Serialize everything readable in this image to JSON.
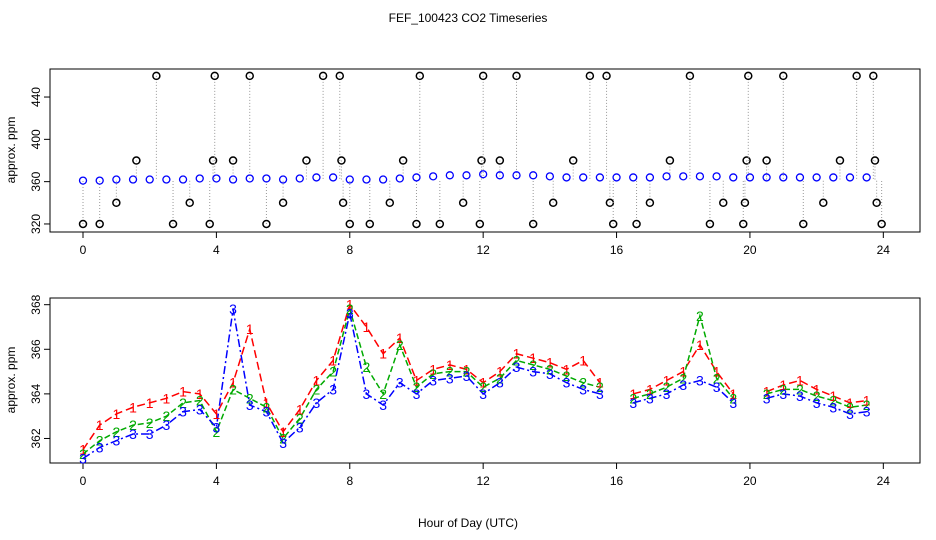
{
  "chart_data": [
    {
      "type": "scatter",
      "title": "FEF_100423  CO2 Timeseries",
      "y_label": "approx. ppm",
      "xlim": [
        -0.99,
        25.1
      ],
      "xticks": [
        0,
        4,
        8,
        12,
        16,
        20,
        24
      ],
      "ylim": [
        312.4,
        466.5
      ],
      "yticks": [
        320,
        360,
        400,
        440
      ],
      "x": [
        0,
        0.5,
        1,
        1.5,
        2,
        2.5,
        3,
        3.5,
        4,
        4.5,
        5,
        5.5,
        6,
        6.5,
        7,
        7.5,
        8,
        8.5,
        9,
        9.5,
        10,
        10.5,
        11,
        11.5,
        12,
        12.5,
        13,
        13.5,
        14,
        14.5,
        15,
        15.5,
        16,
        16.5,
        17,
        17.5,
        18,
        18.5,
        19,
        19.5,
        20,
        20.5,
        21,
        21.5,
        22,
        22.5,
        23,
        23.5
      ],
      "series": [
        {
          "color": "#0000ff",
          "values": [
            361,
            361,
            362,
            362,
            362,
            362,
            362,
            363,
            363,
            362,
            363,
            363,
            362,
            363,
            364,
            364,
            362,
            362,
            362,
            363,
            364,
            365,
            366,
            366,
            367,
            366,
            366,
            366,
            365,
            364,
            364,
            364,
            364,
            364,
            364,
            365,
            365,
            365,
            365,
            364,
            364,
            364,
            364,
            364,
            364,
            364,
            364,
            364
          ]
        }
      ],
      "outliers": {
        "color": "#000000",
        "x": [
          0,
          0.5,
          1,
          1.6,
          2.2,
          2.7,
          3.2,
          3.8,
          3.9,
          3.95,
          4.5,
          5,
          5.5,
          6,
          6.7,
          7.2,
          7.7,
          7.75,
          7.8,
          8,
          8.6,
          9.2,
          9.6,
          10,
          10.1,
          10.7,
          11.4,
          11.9,
          11.95,
          12,
          12.5,
          13,
          13.5,
          14.1,
          14.7,
          15.2,
          15.7,
          15.8,
          15.9,
          16.6,
          17,
          17.6,
          18.2,
          18.8,
          19.2,
          19.8,
          19.85,
          19.9,
          19.95,
          20.5,
          21,
          21.6,
          22.2,
          22.7,
          23.2,
          23.7,
          23.75,
          23.8,
          23.95
        ],
        "values": [
          320,
          320,
          340,
          380,
          460,
          320,
          340,
          320,
          380,
          460,
          380,
          460,
          320,
          340,
          380,
          460,
          460,
          380,
          340,
          320,
          320,
          340,
          380,
          320,
          460,
          320,
          340,
          320,
          380,
          460,
          380,
          460,
          320,
          340,
          380,
          460,
          460,
          340,
          320,
          320,
          340,
          380,
          460,
          320,
          340,
          320,
          340,
          380,
          460,
          380,
          460,
          320,
          340,
          380,
          460,
          460,
          380,
          340,
          320
        ]
      }
    },
    {
      "type": "line",
      "y_label": "approx. ppm",
      "x_label": "Hour of Day (UTC)",
      "xlim": [
        -0.99,
        25.1
      ],
      "xticks": [
        0,
        4,
        8,
        12,
        16,
        20,
        24
      ],
      "ylim": [
        360.9,
        368.3
      ],
      "yticks": [
        362,
        364,
        366,
        368
      ],
      "x": [
        0,
        0.5,
        1,
        1.5,
        2,
        2.5,
        3,
        3.5,
        4,
        4.5,
        5,
        5.5,
        6,
        6.5,
        7,
        7.5,
        8,
        8.5,
        9,
        9.5,
        10,
        10.5,
        11,
        11.5,
        12,
        12.5,
        13,
        13.5,
        14,
        14.5,
        15,
        15.5,
        16,
        16.5,
        17,
        17.5,
        18,
        18.5,
        19,
        19.5,
        20,
        20.5,
        21,
        21.5,
        22,
        22.5,
        23,
        23.5
      ],
      "series": [
        {
          "name": "1",
          "color": "#ff0000",
          "values": [
            361.5,
            362.6,
            363.1,
            363.4,
            363.6,
            363.8,
            364.1,
            364.0,
            363.1,
            364.5,
            366.9,
            363.6,
            362.3,
            363.3,
            364.6,
            365.5,
            368.0,
            367.0,
            365.8,
            366.5,
            364.6,
            365.1,
            365.3,
            365.1,
            364.5,
            365.0,
            365.8,
            365.6,
            365.4,
            365.1,
            365.5,
            364.5,
            null,
            364.0,
            364.2,
            364.6,
            365.0,
            366.2,
            365.0,
            364.0,
            null,
            364.1,
            364.4,
            364.6,
            364.2,
            363.9,
            363.6,
            363.7
          ]
        },
        {
          "name": "2",
          "color": "#00aa00",
          "values": [
            361.3,
            361.9,
            362.3,
            362.6,
            362.7,
            363.0,
            363.6,
            363.7,
            362.3,
            364.2,
            363.8,
            363.4,
            362.0,
            362.9,
            364.2,
            365.0,
            367.8,
            365.2,
            364.0,
            366.2,
            364.3,
            364.9,
            365.0,
            365.0,
            364.3,
            364.7,
            365.5,
            365.3,
            365.1,
            364.8,
            364.5,
            364.3,
            null,
            363.8,
            364.0,
            364.3,
            364.7,
            367.5,
            364.7,
            363.8,
            null,
            364.0,
            364.2,
            364.2,
            363.9,
            363.7,
            363.4,
            363.5
          ]
        },
        {
          "name": "3",
          "color": "#0000ff",
          "values": [
            361.1,
            361.6,
            361.9,
            362.2,
            362.2,
            362.6,
            363.2,
            363.3,
            362.5,
            367.8,
            363.5,
            363.2,
            361.8,
            362.5,
            363.6,
            364.2,
            367.6,
            364.0,
            363.5,
            364.5,
            364.0,
            364.6,
            364.7,
            364.8,
            364.0,
            364.5,
            365.2,
            365.0,
            364.9,
            364.5,
            364.2,
            364.0,
            null,
            363.6,
            363.8,
            364.0,
            364.4,
            364.6,
            364.3,
            363.6,
            null,
            363.8,
            364.0,
            363.9,
            363.6,
            363.4,
            363.1,
            363.2
          ]
        }
      ]
    }
  ]
}
